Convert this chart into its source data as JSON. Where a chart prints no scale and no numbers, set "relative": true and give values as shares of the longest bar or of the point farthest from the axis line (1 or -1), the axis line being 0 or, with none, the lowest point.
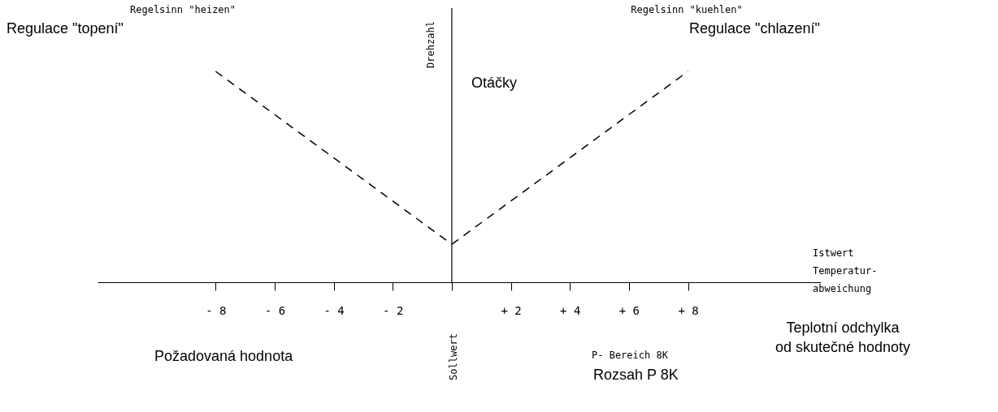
{
  "chart_data": {
    "type": "line",
    "relative": true,
    "xlabel": "Istwert\nTemperatur-\nabweichung",
    "ylabel": "Drehzahl",
    "series": [
      {
        "color": "#000000",
        "x": [
          -8,
          0
        ],
        "values": [
          1,
          0.18
        ]
      },
      {
        "color": "#000000",
        "x": [
          0,
          8
        ],
        "values": [
          0.18,
          1
        ]
      }
    ],
    "xlim": [
      -12,
      12.5
    ],
    "xticks": [
      {
        "value": -8,
        "label": "- 8"
      },
      {
        "value": -6,
        "label": "- 6"
      },
      {
        "value": -4,
        "label": "- 4"
      },
      {
        "value": -2,
        "label": "- 2"
      },
      {
        "value": 0,
        "label": null
      },
      {
        "value": 2,
        "label": "+ 2"
      },
      {
        "value": 4,
        "label": "+ 4"
      },
      {
        "value": 6,
        "label": "+ 6"
      },
      {
        "value": 8,
        "label": "+ 8"
      }
    ],
    "ref_lines": [
      {
        "axis": "x",
        "value": 0,
        "color": "#000000"
      }
    ],
    "annotations": [
      "Regelsinn \"heizen\"",
      "Regulace \"topení\"",
      "Regelsinn \"kuehlen\"",
      "Regulace \"chlazení\"",
      "Otáčky",
      "Teplotní odchylka\nod skutečné hodnoty",
      "Sollwert",
      "Požadovaná hodnota",
      "P- Bereich 8K",
      "Rozsah P 8K"
    ],
    "line_style": "dashed",
    "marker": "none",
    "grid": false
  }
}
